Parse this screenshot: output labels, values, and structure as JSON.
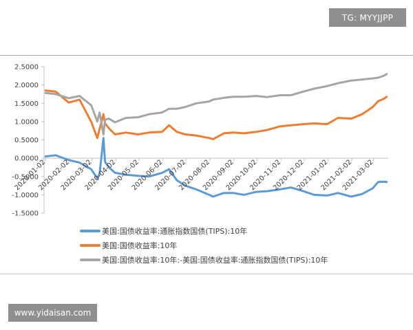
{
  "watermarks": {
    "top_right": "TG: MYYJJPP",
    "bottom_left": "www.yidaisan.com"
  },
  "colors": {
    "tips": "#5b9bd5",
    "nominal": "#ed7d31",
    "spread": "#a5a5a5"
  },
  "chart_data": {
    "type": "line",
    "title": "",
    "xlabel": "",
    "ylabel": "",
    "ylim": [
      -1.5,
      2.5
    ],
    "yticks": [
      "2.5000",
      "2.0000",
      "1.5000",
      "1.0000",
      "0.5000",
      "0.0000",
      "-0.5000",
      "-1.0000",
      "-1.5000"
    ],
    "xticks": [
      "2020-01-02",
      "2020-02-02",
      "2020-03-02",
      "2020-04-02",
      "2020-05-02",
      "2020-06-02",
      "2020-07-02",
      "2020-08-02",
      "2020-09-02",
      "2020-10-02",
      "2020-11-02",
      "2020-12-02",
      "2021-01-02",
      "2021-02-02",
      "2021-03-02"
    ],
    "x": [
      "2020-01-02",
      "2020-01-15",
      "2020-02-01",
      "2020-02-15",
      "2020-03-01",
      "2020-03-09",
      "2020-03-12",
      "2020-03-17",
      "2020-03-19",
      "2020-03-24",
      "2020-04-01",
      "2020-04-15",
      "2020-05-01",
      "2020-05-15",
      "2020-06-01",
      "2020-06-10",
      "2020-06-20",
      "2020-07-01",
      "2020-07-15",
      "2020-08-01",
      "2020-08-06",
      "2020-08-20",
      "2020-09-01",
      "2020-09-15",
      "2020-10-01",
      "2020-10-15",
      "2020-11-01",
      "2020-11-15",
      "2020-12-01",
      "2020-12-15",
      "2021-01-01",
      "2021-01-15",
      "2021-02-01",
      "2021-02-15",
      "2021-03-01",
      "2021-03-08",
      "2021-03-15",
      "2021-03-19"
    ],
    "series": [
      {
        "name": "美国:国债收益率:通胀指数国债(TIPS):10年",
        "color": "#5b9bd5",
        "values": [
          0.05,
          0.08,
          -0.05,
          -0.12,
          -0.3,
          -0.55,
          -0.42,
          0.55,
          -0.1,
          -0.25,
          -0.4,
          -0.45,
          -0.48,
          -0.5,
          -0.4,
          -0.3,
          -0.6,
          -0.75,
          -0.85,
          -1.0,
          -1.05,
          -0.95,
          -0.95,
          -1.0,
          -0.92,
          -0.9,
          -0.85,
          -0.8,
          -0.9,
          -1.0,
          -1.02,
          -0.95,
          -1.05,
          -0.98,
          -0.82,
          -0.65,
          -0.64,
          -0.65
        ]
      },
      {
        "name": "美国:国债收益率:10年",
        "color": "#ed7d31",
        "values": [
          1.85,
          1.82,
          1.52,
          1.6,
          1.0,
          0.55,
          0.8,
          1.2,
          0.95,
          0.82,
          0.65,
          0.7,
          0.65,
          0.7,
          0.72,
          0.9,
          0.72,
          0.65,
          0.62,
          0.55,
          0.52,
          0.68,
          0.7,
          0.68,
          0.72,
          0.77,
          0.87,
          0.9,
          0.93,
          0.95,
          0.93,
          1.1,
          1.08,
          1.2,
          1.4,
          1.56,
          1.62,
          1.68
        ]
      },
      {
        "name": "美国:国债收益率:10年:-美国:国债收益率:通胀指数国债(TIPS):10年",
        "color": "#a5a5a5",
        "values": [
          1.78,
          1.75,
          1.64,
          1.7,
          1.45,
          1.0,
          1.25,
          0.65,
          1.05,
          1.08,
          0.98,
          1.1,
          1.12,
          1.2,
          1.25,
          1.35,
          1.35,
          1.4,
          1.5,
          1.55,
          1.6,
          1.65,
          1.68,
          1.68,
          1.7,
          1.67,
          1.72,
          1.72,
          1.82,
          1.9,
          1.97,
          2.05,
          2.12,
          2.15,
          2.18,
          2.2,
          2.25,
          2.3
        ]
      }
    ]
  }
}
